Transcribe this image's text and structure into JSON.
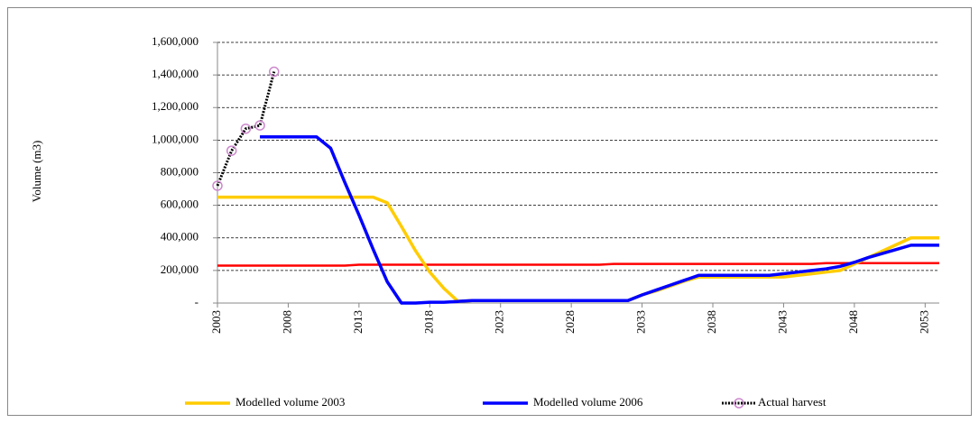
{
  "chart_data": {
    "type": "line",
    "y_label": "Volume (m3)",
    "x": [
      2003,
      2004,
      2005,
      2006,
      2007,
      2008,
      2009,
      2010,
      2011,
      2012,
      2013,
      2014,
      2015,
      2016,
      2017,
      2018,
      2019,
      2020,
      2021,
      2022,
      2023,
      2024,
      2025,
      2026,
      2027,
      2028,
      2029,
      2030,
      2031,
      2032,
      2033,
      2034,
      2035,
      2036,
      2037,
      2038,
      2039,
      2040,
      2041,
      2042,
      2043,
      2044,
      2045,
      2046,
      2047,
      2048,
      2049,
      2050,
      2051,
      2052,
      2053,
      2054
    ],
    "xlim": [
      2003,
      2054
    ],
    "xticks": [
      2003,
      2008,
      2013,
      2018,
      2023,
      2028,
      2033,
      2038,
      2043,
      2048,
      2053
    ],
    "ylim": [
      0,
      1600000
    ],
    "yticks": [
      {
        "value": 0,
        "label": "-"
      },
      {
        "value": 200000,
        "label": "200,000"
      },
      {
        "value": 400000,
        "label": "400,000"
      },
      {
        "value": 600000,
        "label": "600,000"
      },
      {
        "value": 800000,
        "label": "800,000"
      },
      {
        "value": 1000000,
        "label": "1,000,000"
      },
      {
        "value": 1200000,
        "label": "1,200,000"
      },
      {
        "value": 1400000,
        "label": "1,400,000"
      },
      {
        "value": 1600000,
        "label": "1,600,000"
      }
    ],
    "grid": true,
    "legend": "bottom",
    "series": [
      {
        "name": "Modelled volume 2003",
        "color": "#ffcc00",
        "values": [
          650000,
          650000,
          650000,
          650000,
          650000,
          650000,
          650000,
          650000,
          650000,
          650000,
          650000,
          650000,
          615000,
          470000,
          320000,
          190000,
          90000,
          10000,
          15000,
          15000,
          15000,
          15000,
          15000,
          15000,
          15000,
          15000,
          15000,
          15000,
          15000,
          15000,
          50000,
          75000,
          105000,
          135000,
          160000,
          160000,
          160000,
          160000,
          160000,
          160000,
          160000,
          170000,
          180000,
          190000,
          200000,
          240000,
          280000,
          320000,
          360000,
          400000,
          400000,
          400000
        ]
      },
      {
        "name": "Modelled volume 2006",
        "color": "#0000ff",
        "values": [
          null,
          null,
          null,
          1020000,
          1020000,
          1020000,
          1020000,
          1020000,
          950000,
          740000,
          540000,
          330000,
          130000,
          0,
          0,
          5000,
          5000,
          10000,
          15000,
          15000,
          15000,
          15000,
          15000,
          15000,
          15000,
          15000,
          15000,
          15000,
          15000,
          15000,
          50000,
          80000,
          110000,
          140000,
          170000,
          170000,
          170000,
          170000,
          170000,
          170000,
          180000,
          190000,
          200000,
          210000,
          225000,
          250000,
          280000,
          305000,
          330000,
          355000,
          355000,
          355000
        ]
      },
      {
        "name": "Actual harvest",
        "color": "#000000",
        "marker_color": "#cc88cc",
        "values": [
          720000,
          935000,
          1070000,
          1090000,
          1420000,
          null,
          null,
          null,
          null,
          null,
          null,
          null,
          null,
          null,
          null,
          null,
          null,
          null,
          null,
          null,
          null,
          null,
          null,
          null,
          null,
          null,
          null,
          null,
          null,
          null,
          null,
          null,
          null,
          null,
          null,
          null,
          null,
          null,
          null,
          null,
          null,
          null,
          null,
          null,
          null,
          null,
          null,
          null,
          null,
          null,
          null,
          null
        ]
      },
      {
        "color": "#ff0000",
        "values": [
          230000,
          230000,
          230000,
          230000,
          230000,
          230000,
          230000,
          230000,
          230000,
          230000,
          235000,
          235000,
          235000,
          235000,
          235000,
          235000,
          235000,
          235000,
          235000,
          235000,
          235000,
          235000,
          235000,
          235000,
          235000,
          235000,
          235000,
          235000,
          240000,
          240000,
          240000,
          240000,
          240000,
          240000,
          240000,
          240000,
          240000,
          240000,
          240000,
          240000,
          240000,
          240000,
          240000,
          245000,
          245000,
          245000,
          245000,
          245000,
          245000,
          245000,
          245000,
          245000
        ]
      }
    ]
  }
}
